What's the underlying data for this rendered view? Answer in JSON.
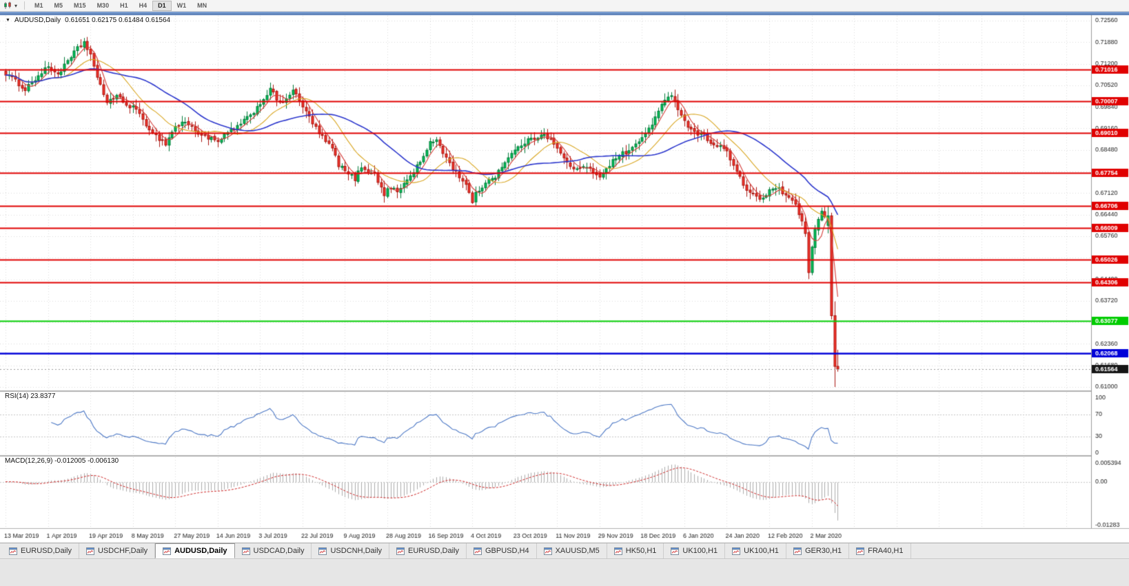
{
  "icons": {
    "collapse_arrow": "▼",
    "dropdown_caret": "▾"
  },
  "toolbar": {
    "timeframes": [
      "M1",
      "M5",
      "M15",
      "M30",
      "H1",
      "H4",
      "D1",
      "W1",
      "MN"
    ],
    "active_timeframe": "D1"
  },
  "chart": {
    "title": "AUDUSD,Daily",
    "ohlc_text": "0.61651 0.62175 0.61484 0.61564"
  },
  "indicators": {
    "rsi": {
      "text": "RSI(14) 23.8377"
    },
    "macd": {
      "text": "MACD(12,26,9) -0.012005 -0.006130"
    }
  },
  "tabs": [
    {
      "label": "EURUSD,Daily",
      "active": false
    },
    {
      "label": "USDCHF,Daily",
      "active": false
    },
    {
      "label": "AUDUSD,Daily",
      "active": true
    },
    {
      "label": "USDCAD,Daily",
      "active": false
    },
    {
      "label": "USDCNH,Daily",
      "active": false
    },
    {
      "label": "EURUSD,Daily",
      "active": false
    },
    {
      "label": "GBPUSD,H4",
      "active": false
    },
    {
      "label": "XAUUSD,M5",
      "active": false
    },
    {
      "label": "HK50,H1",
      "active": false
    },
    {
      "label": "UK100,H1",
      "active": false
    },
    {
      "label": "UK100,H1",
      "active": false
    },
    {
      "label": "GER30,H1",
      "active": false
    },
    {
      "label": "FRA40,H1",
      "active": false
    }
  ],
  "chart_data": {
    "type": "candlestick",
    "symbol": "AUDUSD",
    "timeframe": "Daily",
    "num_candles": 256,
    "candles_per_label_gap": 13,
    "x_axis_dates": [
      "13 Mar 2019",
      "1 Apr 2019",
      "19 Apr 2019",
      "8 May 2019",
      "27 May 2019",
      "14 Jun 2019",
      "3 Jul 2019",
      "22 Jul 2019",
      "9 Aug 2019",
      "28 Aug 2019",
      "16 Sep 2019",
      "4 Oct 2019",
      "23 Oct 2019",
      "11 Nov 2019",
      "29 Nov 2019",
      "18 Dec 2019",
      "6 Jan 2020",
      "24 Jan 2020",
      "12 Feb 2020",
      "2 Mar 2020"
    ],
    "price_axis": {
      "min": 0.61,
      "max": 0.7256,
      "ticks": [
        "0.72560",
        "0.71880",
        "0.71200",
        "0.70520",
        "0.69840",
        "0.69160",
        "0.68480",
        "0.67800",
        "0.67120",
        "0.66440",
        "0.65760",
        "0.65080",
        "0.64400",
        "0.63720",
        "0.63040",
        "0.62360",
        "0.61680",
        "0.61000"
      ]
    },
    "price_keypoints": [
      [
        0,
        0.709
      ],
      [
        3,
        0.7065
      ],
      [
        6,
        0.704
      ],
      [
        9,
        0.7072
      ],
      [
        13,
        0.711
      ],
      [
        16,
        0.7088
      ],
      [
        19,
        0.7125
      ],
      [
        22,
        0.7168
      ],
      [
        24,
        0.7188
      ],
      [
        26,
        0.715
      ],
      [
        28,
        0.7072
      ],
      [
        31,
        0.7002
      ],
      [
        34,
        0.7018
      ],
      [
        37,
        0.699
      ],
      [
        39,
        0.6985
      ],
      [
        42,
        0.6942
      ],
      [
        46,
        0.6892
      ],
      [
        49,
        0.6868
      ],
      [
        52,
        0.6922
      ],
      [
        55,
        0.6938
      ],
      [
        58,
        0.6908
      ],
      [
        61,
        0.6892
      ],
      [
        65,
        0.6872
      ],
      [
        68,
        0.6902
      ],
      [
        72,
        0.6928
      ],
      [
        75,
        0.6958
      ],
      [
        78,
        0.6995
      ],
      [
        81,
        0.704
      ],
      [
        84,
        0.6992
      ],
      [
        88,
        0.7035
      ],
      [
        91,
        0.6985
      ],
      [
        96,
        0.69
      ],
      [
        100,
        0.6852
      ],
      [
        102,
        0.6802
      ],
      [
        104,
        0.678
      ],
      [
        107,
        0.6757
      ],
      [
        109,
        0.6795
      ],
      [
        113,
        0.6772
      ],
      [
        116,
        0.6705
      ],
      [
        117,
        0.6732
      ],
      [
        120,
        0.6716
      ],
      [
        124,
        0.6766
      ],
      [
        128,
        0.6826
      ],
      [
        130,
        0.6868
      ],
      [
        132,
        0.6882
      ],
      [
        135,
        0.6822
      ],
      [
        138,
        0.6776
      ],
      [
        141,
        0.6742
      ],
      [
        143,
        0.6678
      ],
      [
        144,
        0.6708
      ],
      [
        147,
        0.6746
      ],
      [
        150,
        0.6766
      ],
      [
        153,
        0.6812
      ],
      [
        156,
        0.6846
      ],
      [
        159,
        0.6872
      ],
      [
        162,
        0.6886
      ],
      [
        165,
        0.6902
      ],
      [
        168,
        0.6866
      ],
      [
        169,
        0.6852
      ],
      [
        172,
        0.6806
      ],
      [
        175,
        0.6786
      ],
      [
        178,
        0.6792
      ],
      [
        182,
        0.6766
      ],
      [
        185,
        0.6802
      ],
      [
        188,
        0.6832
      ],
      [
        191,
        0.6846
      ],
      [
        194,
        0.6872
      ],
      [
        195,
        0.6886
      ],
      [
        198,
        0.6932
      ],
      [
        201,
        0.6986
      ],
      [
        204,
        0.7026
      ],
      [
        206,
        0.6982
      ],
      [
        208,
        0.6936
      ],
      [
        211,
        0.6906
      ],
      [
        214,
        0.6892
      ],
      [
        217,
        0.6866
      ],
      [
        220,
        0.6852
      ],
      [
        221,
        0.6842
      ],
      [
        224,
        0.6776
      ],
      [
        227,
        0.6722
      ],
      [
        230,
        0.6702
      ],
      [
        232,
        0.6692
      ],
      [
        234,
        0.6716
      ],
      [
        236,
        0.6732
      ],
      [
        238,
        0.6712
      ],
      [
        240,
        0.6692
      ],
      [
        242,
        0.6672
      ],
      [
        244,
        0.6626
      ],
      [
        245,
        0.6582
      ],
      [
        246,
        0.6458
      ],
      [
        247,
        0.6542
      ],
      [
        248,
        0.6592
      ],
      [
        249,
        0.6632
      ],
      [
        250,
        0.6648
      ],
      [
        251,
        0.6642
      ]
    ],
    "last_candles_ohlc": [
      [
        0.661,
        0.6672,
        0.6585,
        0.664
      ],
      [
        0.664,
        0.665,
        0.6313,
        0.6325
      ],
      [
        0.6325,
        0.637,
        0.61,
        0.6165
      ],
      [
        0.61651,
        0.62175,
        0.61484,
        0.61564
      ]
    ],
    "levels": [
      {
        "label": "0.71016",
        "price": 0.71016,
        "color": "#e00000"
      },
      {
        "label": "0.70007",
        "price": 0.70007,
        "color": "#e00000"
      },
      {
        "label": "0.69010",
        "price": 0.6901,
        "color": "#e00000"
      },
      {
        "label": "0.67754",
        "price": 0.67754,
        "color": "#e00000"
      },
      {
        "label": "0.66706",
        "price": 0.66706,
        "color": "#e00000"
      },
      {
        "label": "0.66009",
        "price": 0.66009,
        "color": "#e00000"
      },
      {
        "label": "0.65026",
        "price": 0.65026,
        "color": "#e00000"
      },
      {
        "label": "0.64306",
        "price": 0.64306,
        "color": "#e00000"
      },
      {
        "label": "0.63077",
        "price": 0.63077,
        "color": "#00cc00"
      },
      {
        "label": "0.62068",
        "price": 0.62068,
        "color": "#0000d8"
      }
    ],
    "current_price": {
      "label": "0.61564",
      "price": 0.61564,
      "color": "#151515"
    },
    "moving_averages": [
      {
        "type": "sma",
        "period": 5,
        "color": "#d43a36",
        "width": 1.1
      },
      {
        "type": "sma",
        "period": 15,
        "color": "#d8a520",
        "width": 1.1
      },
      {
        "type": "sma",
        "period": 34,
        "color": "#2a35cc",
        "width": 1.6
      }
    ],
    "rsi": {
      "period": 14,
      "current": 23.8377,
      "level_lines": [
        70,
        30
      ],
      "axis_ticks": [
        {
          "label": "100",
          "v": 100
        },
        {
          "label": "70",
          "v": 70
        },
        {
          "label": "30",
          "v": 30
        },
        {
          "label": "0",
          "v": 0
        }
      ]
    },
    "macd": {
      "fast": 12,
      "slow": 26,
      "signal": 9,
      "current_main": -0.012005,
      "current_signal": -0.00613,
      "axis": {
        "max": 0.005394,
        "min": -0.01283
      },
      "axis_ticks": [
        {
          "label": "0.005394",
          "v": 0.005394
        },
        {
          "label": "0.00",
          "v": 0
        },
        {
          "label": "-0.01283",
          "v": -0.01283
        }
      ]
    },
    "colors": {
      "up": "#00c157",
      "up_dark": "#007a38",
      "down": "#f3342c",
      "down_dark": "#a8130d",
      "grid": "#dadada",
      "divider": "#b0b0b0",
      "scale_text": "#1a1a1a",
      "rsi_line": "#4a76c4",
      "macd_hist": "#ababab",
      "macd_signal": "#cc2222",
      "title_strip_top": "#87a9d9",
      "title_strip_bottom": "#4a71ad"
    }
  }
}
